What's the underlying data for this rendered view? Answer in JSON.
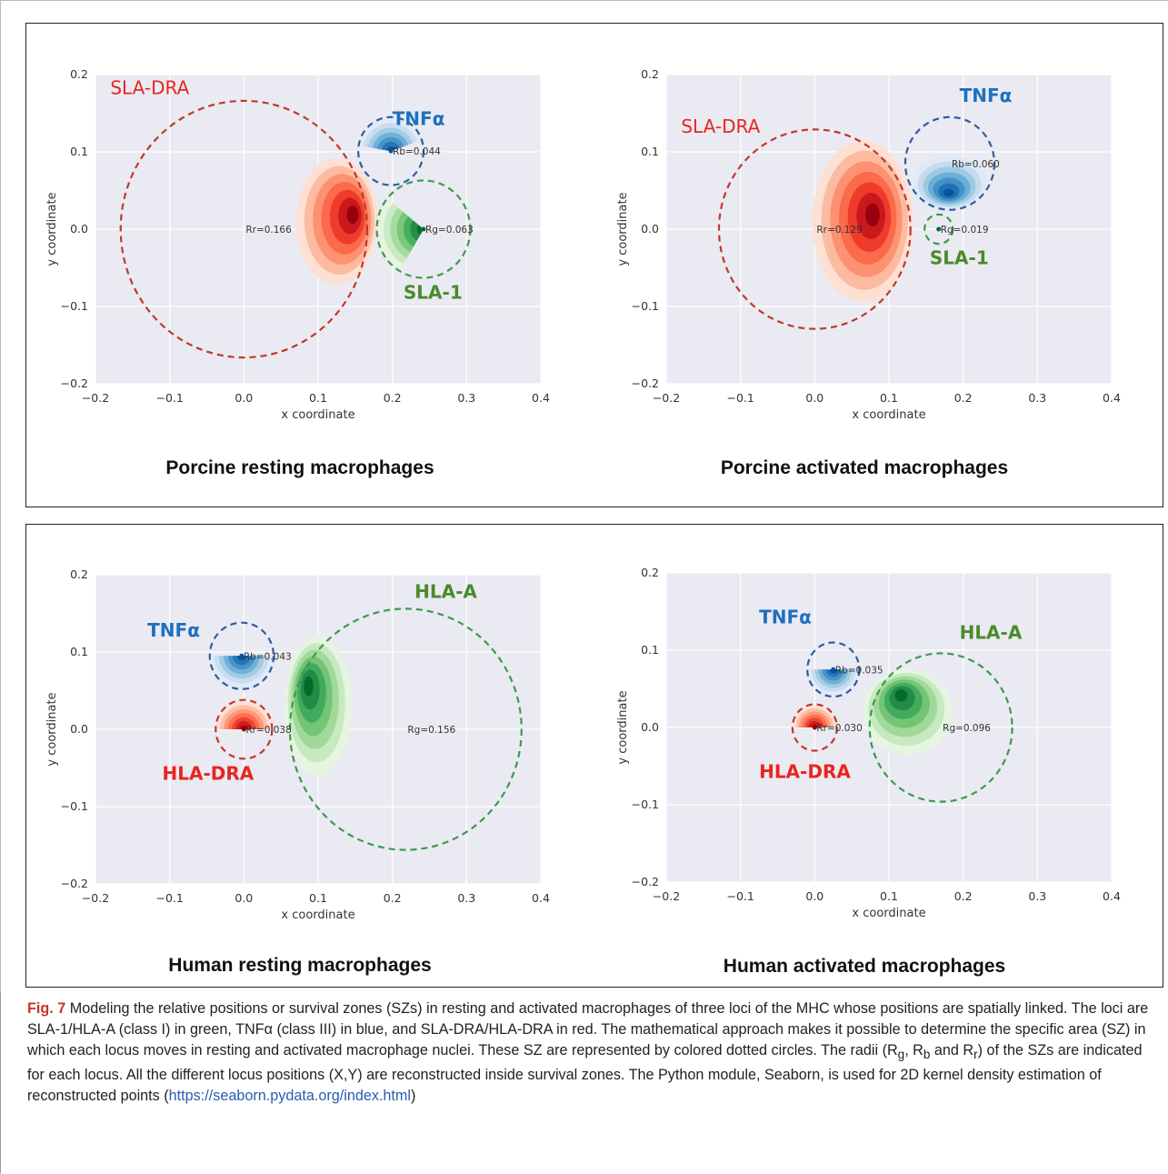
{
  "figure": {
    "caption_label": "Fig. 7",
    "caption_text": " Modeling the relative positions or survival zones (SZs) in resting and activated macrophages of three loci of the MHC whose positions are spatially linked. The loci are SLA-1/HLA-A (class I) in green, TNFα (class III) in blue, and SLA-DRA/HLA-DRA in red. The mathematical approach makes it possible to determine the specific area (SZ) in which each locus moves in resting and activated macrophage nuclei. These SZ are represented by colored dotted circles. The radii (R",
    "caption_sub_g": "g",
    "caption_sep1": ", R",
    "caption_sub_b": "b",
    "caption_sep2": " and R",
    "caption_sub_r": "r",
    "caption_text2": ") of the SZs are indicated for each locus. All the different locus positions (X,Y) are reconstructed inside survival zones. The Python module, Seaborn, is used for 2D kernel density estimation of reconstructed points (",
    "caption_link": "https://seaborn.pydata.org/index.html",
    "caption_end": ")"
  },
  "colors": {
    "plot_bg": "#eaeaf2",
    "grid": "#ffffff",
    "red_circle": "#c0392b",
    "blue_circle": "#2e5c9e",
    "green_circle": "#3d9a4a",
    "red_label": "#e8251f",
    "blue_label": "#1f6fbf",
    "green_label": "#4a8a2a"
  },
  "chart_data": [
    {
      "id": "porcine-resting",
      "type": "scatter",
      "subtitle": "Porcine resting macrophages",
      "xlabel": "x coordinate",
      "ylabel": "y coordinate",
      "xlim": [
        -0.2,
        0.4
      ],
      "ylim": [
        -0.2,
        0.2
      ],
      "xticks": [
        "−0.2",
        "−0.1",
        "0.0",
        "0.1",
        "0.2",
        "0.3",
        "0.4"
      ],
      "yticks": [
        "0.2",
        "0.1",
        "0.0",
        "−0.1",
        "−0.2"
      ],
      "grid": true,
      "loci": [
        {
          "name": "SLA-DRA",
          "color": "red",
          "cx": 0.0,
          "cy": 0.0,
          "r": 0.166,
          "radius_label": "Rr=0.166",
          "label_at": [
            -0.18,
            0.175
          ],
          "blob": {
            "cx": 0.125,
            "cy": 0.01,
            "rx": 0.055,
            "ry": 0.082,
            "peak": [
              0.15,
              0.02
            ]
          }
        },
        {
          "name": "TNFα",
          "color": "blue",
          "cx": 0.198,
          "cy": 0.101,
          "r": 0.044,
          "radius_label": "Rb=0.044",
          "label_at": [
            0.2,
            0.135
          ],
          "blob": {
            "fan": true,
            "cx": 0.198,
            "cy": 0.101,
            "radius": 0.044,
            "from": -170,
            "to": -20
          }
        },
        {
          "name": "SLA-1",
          "color": "green",
          "cx": 0.242,
          "cy": 0.0,
          "r": 0.063,
          "radius_label": "Rg=0.063",
          "label_at": [
            0.215,
            -0.09
          ],
          "blob": {
            "fan": true,
            "cx": 0.242,
            "cy": 0.0,
            "radius": 0.063,
            "from": 120,
            "to": 220
          }
        }
      ]
    },
    {
      "id": "porcine-activated",
      "type": "scatter",
      "subtitle": "Porcine activated macrophages",
      "xlabel": "x coordinate",
      "ylabel": "y coordinate",
      "xlim": [
        -0.2,
        0.4
      ],
      "ylim": [
        -0.2,
        0.2
      ],
      "xticks": [
        "−0.2",
        "−0.1",
        "0.0",
        "0.1",
        "0.2",
        "0.3",
        "0.4"
      ],
      "yticks": [
        "0.2",
        "0.1",
        "0.0",
        "−0.1",
        "−0.2"
      ],
      "grid": true,
      "loci": [
        {
          "name": "SLA-DRA",
          "color": "red",
          "cx": 0.0,
          "cy": 0.0,
          "r": 0.129,
          "radius_label": "Rr=0.129",
          "label_at": [
            -0.18,
            0.125
          ],
          "blob": {
            "cx": 0.065,
            "cy": 0.01,
            "rx": 0.068,
            "ry": 0.105,
            "peak": [
              0.08,
              0.02
            ]
          }
        },
        {
          "name": "TNFα",
          "color": "blue",
          "cx": 0.182,
          "cy": 0.085,
          "r": 0.06,
          "radius_label": "Rb=0.060",
          "label_at": [
            0.195,
            0.165
          ],
          "blob": {
            "cx": 0.182,
            "cy": 0.06,
            "rx": 0.05,
            "ry": 0.035,
            "peak": [
              0.18,
              0.045
            ]
          }
        },
        {
          "name": "SLA-1",
          "color": "green",
          "cx": 0.167,
          "cy": 0.0,
          "r": 0.019,
          "radius_label": "Rg=0.019",
          "label_at": [
            0.155,
            -0.045
          ],
          "blob": {
            "dot": true,
            "cx": 0.167,
            "cy": 0.0
          }
        }
      ]
    },
    {
      "id": "human-resting",
      "type": "scatter",
      "subtitle": "Human resting macrophages",
      "xlabel": "x coordinate",
      "ylabel": "y coordinate",
      "xlim": [
        -0.2,
        0.4
      ],
      "ylim": [
        -0.2,
        0.2
      ],
      "xticks": [
        "−0.2",
        "−0.1",
        "0.0",
        "0.1",
        "0.2",
        "0.3",
        "0.4"
      ],
      "yticks": [
        "0.2",
        "0.1",
        "0.0",
        "−0.1",
        "−0.2"
      ],
      "grid": true,
      "loci": [
        {
          "name": "HLA-A",
          "color": "green",
          "cx": 0.218,
          "cy": 0.0,
          "r": 0.156,
          "radius_label": "Rg=0.156",
          "label_at": [
            0.23,
            0.17
          ],
          "blob": {
            "cx": 0.1,
            "cy": 0.03,
            "rx": 0.045,
            "ry": 0.09,
            "peak": [
              0.085,
              0.06
            ]
          }
        },
        {
          "name": "TNFα",
          "color": "blue",
          "cx": -0.003,
          "cy": 0.095,
          "r": 0.043,
          "radius_label": "Rb=0.043",
          "label_at": [
            -0.13,
            0.12
          ],
          "blob": {
            "fan": true,
            "cx": -0.003,
            "cy": 0.095,
            "radius": 0.043,
            "from": 0,
            "to": 180
          }
        },
        {
          "name": "HLA-DRA",
          "color": "red",
          "cx": 0.0,
          "cy": 0.0,
          "r": 0.038,
          "radius_label": "Rr=0.038",
          "label_at": [
            -0.11,
            -0.065
          ],
          "blob": {
            "fan": true,
            "cx": 0.0,
            "cy": 0.0,
            "radius": 0.038,
            "from": 180,
            "to": 360
          }
        }
      ]
    },
    {
      "id": "human-activated",
      "type": "scatter",
      "subtitle": "Human activated macrophages",
      "xlabel": "x coordinate",
      "ylabel": "y coordinate",
      "xlim": [
        -0.2,
        0.4
      ],
      "ylim": [
        -0.2,
        0.2
      ],
      "xticks": [
        "−0.2",
        "−0.1",
        "0.0",
        "0.1",
        "0.2",
        "0.3",
        "0.4"
      ],
      "yticks": [
        "0.2",
        "0.1",
        "0.0",
        "−0.1",
        "−0.2"
      ],
      "grid": true,
      "loci": [
        {
          "name": "HLA-A",
          "color": "green",
          "cx": 0.17,
          "cy": 0.0,
          "r": 0.096,
          "radius_label": "Rg=0.096",
          "label_at": [
            0.195,
            0.115
          ],
          "blob": {
            "cx": 0.125,
            "cy": 0.02,
            "rx": 0.06,
            "ry": 0.055,
            "peak": [
              0.115,
              0.045
            ]
          }
        },
        {
          "name": "TNFα",
          "color": "blue",
          "cx": 0.025,
          "cy": 0.075,
          "r": 0.035,
          "radius_label": "Rb=0.035",
          "label_at": [
            -0.075,
            0.135
          ],
          "blob": {
            "fan": true,
            "cx": 0.025,
            "cy": 0.075,
            "radius": 0.035,
            "from": 0,
            "to": 180
          }
        },
        {
          "name": "HLA-DRA",
          "color": "red",
          "cx": 0.0,
          "cy": 0.0,
          "r": 0.03,
          "radius_label": "Rr=0.030",
          "label_at": [
            -0.075,
            -0.065
          ],
          "blob": {
            "fan": true,
            "cx": 0.0,
            "cy": 0.0,
            "radius": 0.03,
            "from": 180,
            "to": 360
          }
        }
      ]
    }
  ]
}
